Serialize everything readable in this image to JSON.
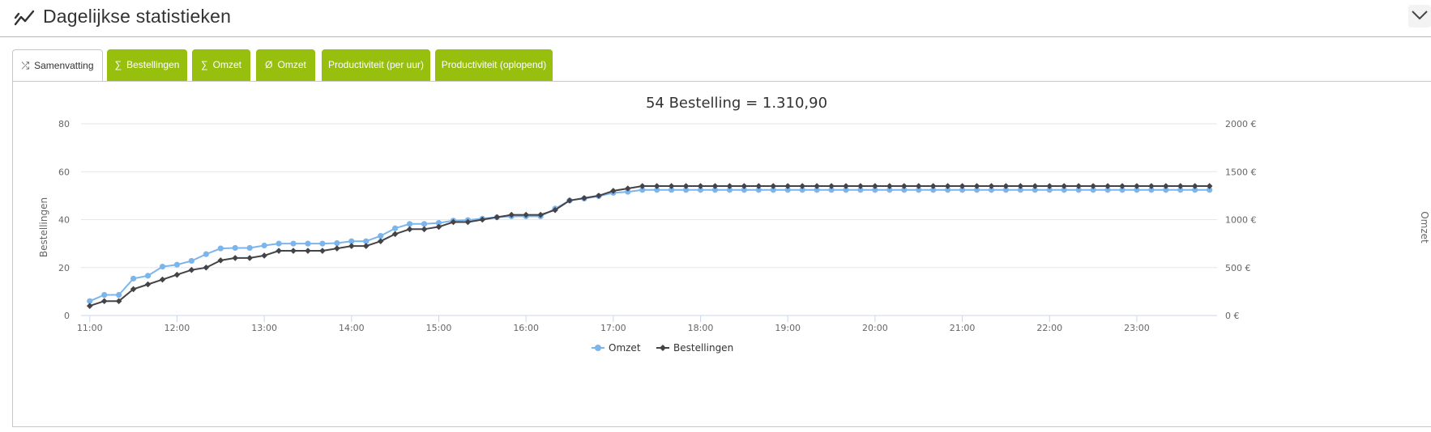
{
  "header": {
    "title": "Dagelijkse statistieken",
    "icon": "chart-line-icon",
    "collapse_icon": "chevron-down-icon"
  },
  "tabs": [
    {
      "label": "Samenvatting",
      "icon": "shuffle-icon",
      "glyph": "⤮",
      "active": true
    },
    {
      "label": "Bestellingen",
      "glyph": "∑",
      "active": false
    },
    {
      "label": "Omzet",
      "glyph": "∑",
      "active": false
    },
    {
      "label": "Omzet",
      "glyph": "Ø",
      "active": false
    },
    {
      "label": "Productiviteit (per uur)",
      "glyph": "",
      "active": false
    },
    {
      "label": "Productiviteit (oplopend)",
      "glyph": "",
      "active": false
    }
  ],
  "colors": {
    "accent": "#97bf0d",
    "omzet": "#7cb5ec",
    "bestellingen": "#434348"
  },
  "chart_data": {
    "type": "line",
    "title": "54 Bestelling =  1.310,90",
    "xlabel": "",
    "ylabel": "Bestellingen",
    "y2label": "Omzet",
    "xlim_hours": [
      10.9,
      23.92
    ],
    "ylim": [
      0,
      80
    ],
    "y2lim": [
      0,
      2000
    ],
    "x_ticks": [
      "11:00",
      "12:00",
      "13:00",
      "14:00",
      "15:00",
      "16:00",
      "17:00",
      "18:00",
      "19:00",
      "20:00",
      "21:00",
      "22:00",
      "23:00"
    ],
    "y_ticks": [
      "0",
      "20",
      "40",
      "60",
      "80"
    ],
    "y2_ticks": [
      "0 €",
      "500 €",
      "1000 €",
      "1500 €",
      "2000 €"
    ],
    "grid": true,
    "legend": "bottom-center",
    "x_start": "11:00",
    "x_step_minutes": 10,
    "series": [
      {
        "name": "Omzet",
        "axis": "right",
        "marker": "circle",
        "values": [
          150,
          215,
          215,
          385,
          415,
          510,
          530,
          570,
          640,
          700,
          705,
          705,
          730,
          750,
          750,
          750,
          750,
          755,
          775,
          775,
          830,
          910,
          955,
          955,
          965,
          990,
          995,
          1010,
          1025,
          1035,
          1035,
          1035,
          1115,
          1200,
          1220,
          1245,
          1280,
          1290,
          1310,
          1310,
          1310,
          1310,
          1310,
          1310,
          1310,
          1310,
          1310,
          1310,
          1310,
          1310,
          1310,
          1310,
          1310,
          1310,
          1310,
          1310,
          1310,
          1310,
          1310,
          1310,
          1310,
          1310,
          1310,
          1310,
          1310,
          1310,
          1310,
          1310,
          1310,
          1310,
          1310,
          1310,
          1310,
          1310,
          1310,
          1310,
          1310,
          1310
        ]
      },
      {
        "name": "Bestellingen",
        "axis": "left",
        "marker": "diamond",
        "values": [
          4,
          6,
          6,
          11,
          13,
          15,
          17,
          19,
          20,
          23,
          24,
          24,
          25,
          27,
          27,
          27,
          27,
          28,
          29,
          29,
          31,
          34,
          36,
          36,
          37,
          39,
          39,
          40,
          41,
          42,
          42,
          42,
          44,
          48,
          49,
          50,
          52,
          53,
          54,
          54,
          54,
          54,
          54,
          54,
          54,
          54,
          54,
          54,
          54,
          54,
          54,
          54,
          54,
          54,
          54,
          54,
          54,
          54,
          54,
          54,
          54,
          54,
          54,
          54,
          54,
          54,
          54,
          54,
          54,
          54,
          54,
          54,
          54,
          54,
          54,
          54,
          54,
          54
        ]
      }
    ]
  }
}
